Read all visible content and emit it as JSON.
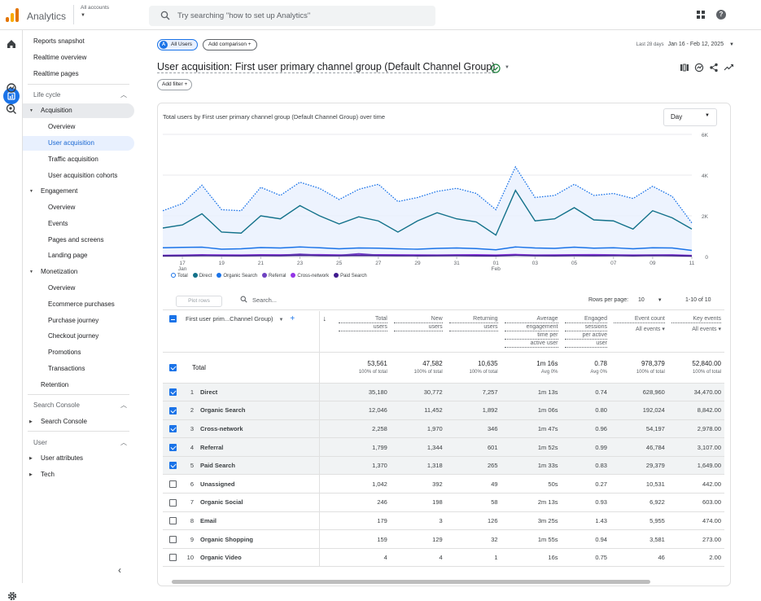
{
  "app": {
    "title": "Analytics",
    "account_label": "All accounts"
  },
  "search": {
    "placeholder": "Try searching \"how to set up Analytics\""
  },
  "nav": {
    "reports_snapshot": "Reports snapshot",
    "realtime_overview": "Realtime overview",
    "realtime_pages": "Realtime pages",
    "life_cycle": "Life cycle",
    "acquisition": "Acquisition",
    "acq_overview": "Overview",
    "user_acquisition": "User acquisition",
    "traffic_acquisition": "Traffic acquisition",
    "user_acq_cohorts": "User acquisition cohorts",
    "engagement": "Engagement",
    "eng_overview": "Overview",
    "events": "Events",
    "pages_screens": "Pages and screens",
    "landing_page": "Landing page",
    "monetization": "Monetization",
    "mon_overview": "Overview",
    "ecommerce": "Ecommerce purchases",
    "purchase_journey": "Purchase journey",
    "checkout_journey": "Checkout journey",
    "promotions": "Promotions",
    "transactions": "Transactions",
    "retention": "Retention",
    "search_console_section": "Search Console",
    "search_console": "Search Console",
    "user_section": "User",
    "user_attributes": "User attributes",
    "tech": "Tech"
  },
  "header": {
    "all_users_chip": "All Users",
    "all_users_initial": "A",
    "add_comparison": "Add comparison",
    "date_prefix": "Last 28 days",
    "date_range": "Jan 16 - Feb 12, 2025",
    "page_title": "User acquisition: First user primary channel group (Default Channel Group)",
    "add_filter": "Add filter"
  },
  "chart": {
    "title": "Total users by First user primary channel group (Default Channel Group) over time",
    "granularity": "Day",
    "y_ticks": [
      "6K",
      "4K",
      "2K",
      "0"
    ],
    "x_ticks": [
      "17",
      "19",
      "21",
      "23",
      "25",
      "27",
      "29",
      "31",
      "01",
      "03",
      "05",
      "07",
      "09",
      "11"
    ],
    "x_month_labels": {
      "17": "Jan",
      "01": "Feb"
    },
    "legend": [
      "Total",
      "Direct",
      "Organic Search",
      "Referral",
      "Cross-network",
      "Paid Search"
    ],
    "colors": {
      "Total": "#1a73e8",
      "Direct": "#12718a",
      "Organic Search": "#1a73e8",
      "Referral": "#6f42c1",
      "Cross-network": "#9334e6",
      "Paid Search": "#3f1a8e"
    }
  },
  "chart_data": {
    "type": "line",
    "x": [
      "Jan 16",
      "Jan 17",
      "Jan 18",
      "Jan 19",
      "Jan 20",
      "Jan 21",
      "Jan 22",
      "Jan 23",
      "Jan 24",
      "Jan 25",
      "Jan 26",
      "Jan 27",
      "Jan 28",
      "Jan 29",
      "Jan 30",
      "Jan 31",
      "Feb 01",
      "Feb 02",
      "Feb 03",
      "Feb 04",
      "Feb 05",
      "Feb 06",
      "Feb 07",
      "Feb 08",
      "Feb 09",
      "Feb 10",
      "Feb 11",
      "Feb 12"
    ],
    "ylim": [
      0,
      6000
    ],
    "series": [
      {
        "name": "Total",
        "values": [
          2250,
          2600,
          3500,
          2300,
          2250,
          3400,
          3000,
          3650,
          3350,
          2800,
          3300,
          3550,
          2700,
          2900,
          3200,
          3350,
          3100,
          2300,
          4400,
          2900,
          3000,
          3550,
          3000,
          3100,
          2850,
          3450,
          2950,
          1650
        ]
      },
      {
        "name": "Direct",
        "values": [
          1400,
          1550,
          2100,
          1200,
          1150,
          2000,
          1850,
          2500,
          2000,
          1600,
          1950,
          1750,
          1200,
          1750,
          2150,
          1850,
          1700,
          1050,
          3250,
          1750,
          1850,
          2400,
          1800,
          1750,
          1350,
          2250,
          1900,
          1350
        ]
      },
      {
        "name": "Organic Search",
        "values": [
          430,
          450,
          460,
          360,
          380,
          440,
          420,
          470,
          430,
          380,
          420,
          410,
          380,
          360,
          400,
          420,
          390,
          330,
          470,
          420,
          400,
          460,
          410,
          430,
          380,
          430,
          420,
          300
        ]
      },
      {
        "name": "Cross-network",
        "values": [
          60,
          70,
          90,
          80,
          75,
          90,
          85,
          100,
          95,
          80,
          70,
          90,
          85,
          80,
          75,
          85,
          90,
          75,
          105,
          75,
          80,
          90,
          95,
          85,
          75,
          80,
          85,
          55
        ]
      },
      {
        "name": "Referral",
        "values": [
          50,
          60,
          70,
          50,
          55,
          65,
          60,
          120,
          70,
          60,
          140,
          70,
          60,
          55,
          60,
          65,
          50,
          45,
          70,
          60,
          55,
          65,
          60,
          70,
          55,
          70,
          65,
          40
        ]
      },
      {
        "name": "Paid Search",
        "values": [
          30,
          35,
          45,
          40,
          35,
          45,
          40,
          60,
          45,
          40,
          55,
          45,
          40,
          35,
          40,
          45,
          35,
          30,
          60,
          40,
          35,
          45,
          40,
          45,
          35,
          50,
          40,
          20
        ]
      }
    ]
  },
  "table": {
    "plot_rows": "Plot rows",
    "search_placeholder": "Search...",
    "rows_per_page_label": "Rows per page:",
    "rows_per_page": "10",
    "pager": "1-10 of 10",
    "dimension_header": "First user prim...Channel Group)",
    "columns": [
      {
        "label": "Total users",
        "lines": [
          "Total",
          "users"
        ]
      },
      {
        "label": "New users",
        "lines": [
          "New",
          "users"
        ]
      },
      {
        "label": "Returning users",
        "lines": [
          "Returning",
          "users"
        ]
      },
      {
        "label": "Average engagement time per active user",
        "lines": [
          "Average",
          "engagement",
          "time per",
          "active user"
        ]
      },
      {
        "label": "Engaged sessions per active user",
        "lines": [
          "Engaged",
          "sessions",
          "per active",
          "user"
        ]
      },
      {
        "label": "Event count",
        "lines": [
          "Event count",
          "All events ▾"
        ]
      },
      {
        "label": "Key events",
        "lines": [
          "Key events",
          "All events ▾"
        ]
      }
    ],
    "total": {
      "label": "Total",
      "values": [
        "53,561",
        "47,582",
        "10,635",
        "1m 16s",
        "0.78",
        "978,379",
        "52,840.00"
      ],
      "subs": [
        "100% of total",
        "100% of total",
        "100% of total",
        "Avg 0%",
        "Avg 0%",
        "100% of total",
        "100% of total"
      ]
    },
    "rows": [
      {
        "n": "1",
        "name": "Direct",
        "selected": true,
        "values": [
          "35,180",
          "30,772",
          "7,257",
          "1m 13s",
          "0.74",
          "628,960",
          "34,470.00"
        ]
      },
      {
        "n": "2",
        "name": "Organic Search",
        "selected": true,
        "values": [
          "12,046",
          "11,452",
          "1,892",
          "1m 06s",
          "0.80",
          "192,024",
          "8,842.00"
        ]
      },
      {
        "n": "3",
        "name": "Cross-network",
        "selected": true,
        "values": [
          "2,258",
          "1,970",
          "346",
          "1m 47s",
          "0.96",
          "54,197",
          "2,978.00"
        ]
      },
      {
        "n": "4",
        "name": "Referral",
        "selected": true,
        "values": [
          "1,799",
          "1,344",
          "601",
          "1m 52s",
          "0.99",
          "46,784",
          "3,107.00"
        ]
      },
      {
        "n": "5",
        "name": "Paid Search",
        "selected": true,
        "values": [
          "1,370",
          "1,318",
          "265",
          "1m 33s",
          "0.83",
          "29,379",
          "1,649.00"
        ]
      },
      {
        "n": "6",
        "name": "Unassigned",
        "selected": false,
        "values": [
          "1,042",
          "392",
          "49",
          "50s",
          "0.27",
          "10,531",
          "442.00"
        ]
      },
      {
        "n": "7",
        "name": "Organic Social",
        "selected": false,
        "values": [
          "246",
          "198",
          "58",
          "2m 13s",
          "0.93",
          "6,922",
          "603.00"
        ]
      },
      {
        "n": "8",
        "name": "Email",
        "selected": false,
        "values": [
          "179",
          "3",
          "126",
          "3m 25s",
          "1.43",
          "5,955",
          "474.00"
        ]
      },
      {
        "n": "9",
        "name": "Organic Shopping",
        "selected": false,
        "values": [
          "159",
          "129",
          "32",
          "1m 55s",
          "0.94",
          "3,581",
          "273.00"
        ]
      },
      {
        "n": "10",
        "name": "Organic Video",
        "selected": false,
        "values": [
          "4",
          "4",
          "1",
          "16s",
          "0.75",
          "46",
          "2.00"
        ]
      }
    ]
  }
}
